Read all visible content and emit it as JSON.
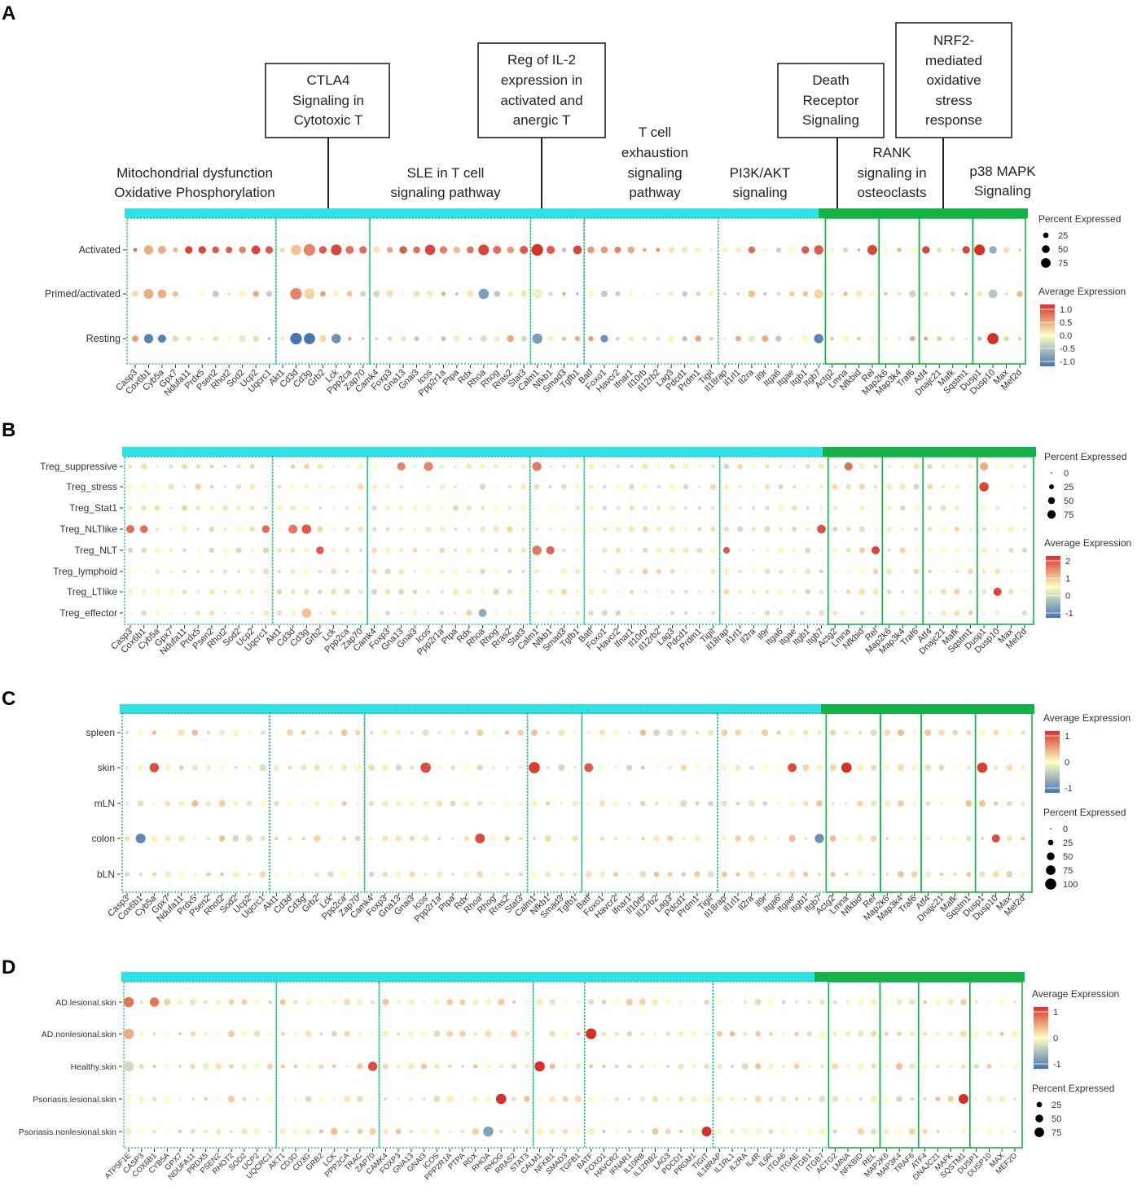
{
  "panel_labels": [
    "A",
    "B",
    "C",
    "D"
  ],
  "pathways_top": [
    {
      "key": "mito",
      "lines": [
        "Mitochondrial dysfunction",
        "Oxidative Phosphorylation"
      ]
    },
    {
      "key": "sle",
      "lines": [
        "SLE in T cell",
        "signaling pathway"
      ]
    },
    {
      "key": "exh",
      "lines": [
        "T cell",
        "exhaustion",
        "signaling",
        "pathway"
      ]
    },
    {
      "key": "pi3k",
      "lines": [
        "PI3K/AKT",
        "signaling"
      ]
    },
    {
      "key": "rank",
      "lines": [
        "RANK",
        "signaling in",
        "osteoclasts"
      ]
    },
    {
      "key": "p38",
      "lines": [
        "p38 MAPK",
        "Signaling"
      ]
    }
  ],
  "pathways_boxed": [
    {
      "key": "ctla4",
      "lines": [
        "CTLA4",
        "Signaling in",
        "Cytotoxic T"
      ]
    },
    {
      "key": "il2",
      "lines": [
        "Reg of IL-2",
        "expression in",
        "activated and",
        "anergic T"
      ]
    },
    {
      "key": "death",
      "lines": [
        "Death",
        "Receptor",
        "Signaling"
      ]
    },
    {
      "key": "nrf2",
      "lines": [
        "NRF2-",
        "mediated",
        "oxidative",
        "stress",
        "response"
      ]
    }
  ],
  "genes_mouse": [
    "Casp3",
    "Cox6b1",
    "Cyb5a",
    "Gpx7",
    "Ndufa11",
    "Prdx5",
    "Psen2",
    "Rhot2",
    "Sod2",
    "Ucp2",
    "Uqcrc1",
    "Akt1",
    "Cd3d",
    "Cd3g",
    "Grb2",
    "Lck",
    "Ppp2ca",
    "Zap70",
    "Camk4",
    "Foxp3",
    "Gna13",
    "Gnai3",
    "Icos",
    "Ppp2r1a",
    "Ptpa",
    "Rdx",
    "Rhoa",
    "Rhog",
    "Rras2",
    "Stat3",
    "Calm1",
    "Nfkb1",
    "Smad3",
    "Tgfb1",
    "Batf",
    "Foxo1",
    "Havcr2",
    "Ifnar1",
    "Il10rb",
    "Il12rb2",
    "Lag3",
    "Pdcd1",
    "Prdm1",
    "Tigit",
    "Il18rap",
    "Il1rl1",
    "Il2ra",
    "Il9r",
    "Itga6",
    "Itgae",
    "Itgb1",
    "Itgb7",
    "Actg2",
    "Lmna",
    "Nfkbid",
    "Rel",
    "Map2k6",
    "Map3k4",
    "Traf6",
    "Atf4",
    "Dnajc21",
    "Mafk",
    "Sqstm1",
    "Dusp1",
    "Dusp10",
    "Max",
    "Mef2d"
  ],
  "genes_human": [
    "ATP5F1E",
    "CASP3",
    "COX6B1",
    "CYB5A",
    "GPX7",
    "NDUFA11",
    "PRDX5",
    "PSEN2",
    "RHOT2",
    "SOD2",
    "UCP2",
    "UQCRC1",
    "AKT1",
    "CD3D",
    "CD3G",
    "GRB2",
    "LCK",
    "PPP2CA",
    "TRAC",
    "ZAP70",
    "CAMK4",
    "FOXP3",
    "GNA13",
    "GNAI3",
    "ICOS",
    "PPP2R1A",
    "PTPA",
    "RDX",
    "RHOA",
    "RHOG",
    "RRAS2",
    "STAT3",
    "CALM1",
    "NFKB1",
    "SMAD3",
    "TGFB1",
    "BATF",
    "FOXO1",
    "HAVCR2",
    "IFNAR1",
    "IL10RB",
    "IL12RB2",
    "LAG3",
    "PDCD1",
    "PRDM1",
    "TIGIT",
    "IL18RAP",
    "IL1RL1",
    "IL2RA",
    "IL4R",
    "IL9R",
    "ITGA6",
    "ITGAE",
    "ITGB1",
    "ITGB7",
    "ACTG2",
    "LMNA",
    "NFKBID",
    "REL",
    "MAP2K6",
    "MAP3K4",
    "TRAF6",
    "ATF4",
    "DNAJC21",
    "MAFK",
    "SQSTM1",
    "DUSP1",
    "DUSP10",
    "MAX",
    "MEF2D"
  ],
  "legend_text": {
    "percent_expressed": "Percent Expressed",
    "average_expression": "Average Expression"
  },
  "colors": {
    "teal_bar": "#2ee3e6",
    "green_bar": "#14b347",
    "dotted_line": "#1fbf8c",
    "scale_high": "#d73027",
    "scale_mid": "#ffffbf",
    "scale_low": "#4575b4"
  },
  "chart_data": [
    {
      "panel": "A",
      "type": "dotplot",
      "genes": "genes_mouse",
      "rows": [
        "Activated",
        "Primed/activated",
        "Resting"
      ],
      "section_breaks_after": [
        "Uqcrc1",
        "Zap70",
        "Stat3",
        "Tgfb1",
        "Tigit",
        "Itgb7",
        "Rel",
        "Traf6",
        "Sqstm1"
      ],
      "color_scale": {
        "min": -1.0,
        "max": 1.0,
        "ticks": [
          "1.0",
          "0.5",
          "0.0",
          "-0.5",
          "-1.0"
        ]
      },
      "size_scale": {
        "ticks": [
          "25",
          "50",
          "75"
        ]
      },
      "highlights": [
        {
          "row": 0,
          "gene": "Casp3",
          "expr": 0.7,
          "pct": 8
        },
        {
          "row": 0,
          "gene": "Cox6b1",
          "expr": 0.4,
          "pct": 45
        },
        {
          "row": 0,
          "gene": "Cyb5a",
          "expr": 0.4,
          "pct": 35
        },
        {
          "row": 0,
          "gene": "Ndufa11",
          "expr": 0.9,
          "pct": 30
        },
        {
          "row": 0,
          "gene": "Prdx5",
          "expr": 0.9,
          "pct": 30
        },
        {
          "row": 0,
          "gene": "Psen2",
          "expr": 0.8,
          "pct": 25
        },
        {
          "row": 0,
          "gene": "Rhot2",
          "expr": 0.8,
          "pct": 22
        },
        {
          "row": 0,
          "gene": "Sod2",
          "expr": 0.6,
          "pct": 25
        },
        {
          "row": 0,
          "gene": "Ucp2",
          "expr": 0.9,
          "pct": 40
        },
        {
          "row": 0,
          "gene": "Uqcrc1",
          "expr": 0.8,
          "pct": 30
        },
        {
          "row": 0,
          "gene": "Cd3d",
          "expr": 0.3,
          "pct": 55
        },
        {
          "row": 0,
          "gene": "Cd3g",
          "expr": 0.6,
          "pct": 70
        },
        {
          "row": 0,
          "gene": "Grb2",
          "expr": 0.8,
          "pct": 30
        },
        {
          "row": 0,
          "gene": "Lck",
          "expr": 0.9,
          "pct": 60
        },
        {
          "row": 0,
          "gene": "Ppp2ca",
          "expr": 0.7,
          "pct": 35
        },
        {
          "row": 0,
          "gene": "Zap70",
          "expr": 0.7,
          "pct": 30
        },
        {
          "row": 0,
          "gene": "Gna13",
          "expr": 0.8,
          "pct": 30
        },
        {
          "row": 0,
          "gene": "Gnai3",
          "expr": 0.7,
          "pct": 25
        },
        {
          "row": 0,
          "gene": "Icos",
          "expr": 0.9,
          "pct": 55
        },
        {
          "row": 0,
          "gene": "Ppp2r1a",
          "expr": 0.6,
          "pct": 30
        },
        {
          "row": 0,
          "gene": "Rdx",
          "expr": 0.7,
          "pct": 25
        },
        {
          "row": 0,
          "gene": "Rhoa",
          "expr": 0.9,
          "pct": 60
        },
        {
          "row": 0,
          "gene": "Rhog",
          "expr": 0.7,
          "pct": 35
        },
        {
          "row": 0,
          "gene": "Rras2",
          "expr": 0.5,
          "pct": 25
        },
        {
          "row": 0,
          "gene": "Stat3",
          "expr": 0.8,
          "pct": 35
        },
        {
          "row": 0,
          "gene": "Calm1",
          "expr": 1.0,
          "pct": 70
        },
        {
          "row": 0,
          "gene": "Nfkb1",
          "expr": 0.8,
          "pct": 35
        },
        {
          "row": 0,
          "gene": "Tgfb1",
          "expr": 0.9,
          "pct": 40
        },
        {
          "row": 0,
          "gene": "Batf",
          "expr": 0.5,
          "pct": 25
        },
        {
          "row": 0,
          "gene": "Foxo1",
          "expr": 0.5,
          "pct": 25
        },
        {
          "row": 0,
          "gene": "Havcr2",
          "expr": 0.6,
          "pct": 22
        },
        {
          "row": 0,
          "gene": "Il2ra",
          "expr": 0.7,
          "pct": 25
        },
        {
          "row": 0,
          "gene": "Itgb1",
          "expr": 0.8,
          "pct": 30
        },
        {
          "row": 0,
          "gene": "Itgb7",
          "expr": 0.8,
          "pct": 45
        },
        {
          "row": 0,
          "gene": "Rel",
          "expr": 0.9,
          "pct": 50
        },
        {
          "row": 0,
          "gene": "Atf4",
          "expr": 0.9,
          "pct": 30
        },
        {
          "row": 0,
          "gene": "Sqstm1",
          "expr": 0.9,
          "pct": 30
        },
        {
          "row": 0,
          "gene": "Dusp1",
          "expr": 1.0,
          "pct": 60
        },
        {
          "row": 0,
          "gene": "Dusp10",
          "expr": -0.6,
          "pct": 30
        },
        {
          "row": 1,
          "gene": "Cox6b1",
          "expr": 0.4,
          "pct": 50
        },
        {
          "row": 1,
          "gene": "Cyb5a",
          "expr": 0.4,
          "pct": 40
        },
        {
          "row": 1,
          "gene": "Cd3d",
          "expr": 0.6,
          "pct": 70
        },
        {
          "row": 1,
          "gene": "Cd3g",
          "expr": 0.2,
          "pct": 60
        },
        {
          "row": 1,
          "gene": "Rhoa",
          "expr": -0.7,
          "pct": 55
        },
        {
          "row": 1,
          "gene": "Calm1",
          "expr": -0.1,
          "pct": 50
        },
        {
          "row": 1,
          "gene": "Itgb7",
          "expr": 0.2,
          "pct": 45
        },
        {
          "row": 1,
          "gene": "Dusp10",
          "expr": -0.4,
          "pct": 40
        },
        {
          "row": 2,
          "gene": "Cox6b1",
          "expr": -0.9,
          "pct": 45
        },
        {
          "row": 2,
          "gene": "Cyb5a",
          "expr": -0.9,
          "pct": 35
        },
        {
          "row": 2,
          "gene": "Cd3d",
          "expr": -1.0,
          "pct": 70
        },
        {
          "row": 2,
          "gene": "Cd3g",
          "expr": -1.0,
          "pct": 65
        },
        {
          "row": 2,
          "gene": "Lck",
          "expr": -0.8,
          "pct": 45
        },
        {
          "row": 2,
          "gene": "Calm1",
          "expr": -0.7,
          "pct": 55
        },
        {
          "row": 2,
          "gene": "Foxo1",
          "expr": -0.8,
          "pct": 30
        },
        {
          "row": 2,
          "gene": "Itgb7",
          "expr": -0.9,
          "pct": 45
        },
        {
          "row": 2,
          "gene": "Dusp10",
          "expr": 1.0,
          "pct": 65
        }
      ]
    },
    {
      "panel": "B",
      "type": "dotplot",
      "genes": "genes_mouse",
      "rows": [
        "Treg_suppressive",
        "Treg_stress",
        "Treg_Stat1",
        "Treg_NLTlike",
        "Treg_NLT",
        "Treg_lymphoid",
        "Treg_LTlike",
        "Treg_effector"
      ],
      "section_breaks_after": [
        "Uqcrc1",
        "Zap70",
        "Stat3",
        "Tgfb1",
        "Tigit",
        "Itgb7",
        "Rel",
        "Traf6",
        "Sqstm1"
      ],
      "color_scale": {
        "min": -1.5,
        "max": 2,
        "ticks": [
          "2",
          "1",
          "0",
          "-1"
        ]
      },
      "size_scale": {
        "ticks": [
          "0",
          "25",
          "50",
          "75"
        ]
      },
      "highlights": [
        {
          "row": 0,
          "gene": "Gna13",
          "expr": 1.2,
          "pct": 45
        },
        {
          "row": 0,
          "gene": "Icos",
          "expr": 1.2,
          "pct": 55
        },
        {
          "row": 0,
          "gene": "Calm1",
          "expr": 1.3,
          "pct": 55
        },
        {
          "row": 0,
          "gene": "Lmna",
          "expr": 1.4,
          "pct": 45
        },
        {
          "row": 0,
          "gene": "Dusp1",
          "expr": 0.8,
          "pct": 45
        },
        {
          "row": 1,
          "gene": "Dusp1",
          "expr": 1.8,
          "pct": 60
        },
        {
          "row": 3,
          "gene": "Casp3",
          "expr": 1.4,
          "pct": 45
        },
        {
          "row": 3,
          "gene": "Cox6b1",
          "expr": 1.4,
          "pct": 40
        },
        {
          "row": 3,
          "gene": "Uqcrc1",
          "expr": 1.4,
          "pct": 40
        },
        {
          "row": 3,
          "gene": "Cd3d",
          "expr": 1.3,
          "pct": 55
        },
        {
          "row": 3,
          "gene": "Cd3g",
          "expr": 1.6,
          "pct": 60
        },
        {
          "row": 3,
          "gene": "Itgb7",
          "expr": 1.7,
          "pct": 50
        },
        {
          "row": 4,
          "gene": "Grb2",
          "expr": 1.6,
          "pct": 40
        },
        {
          "row": 4,
          "gene": "Calm1",
          "expr": 1.3,
          "pct": 60
        },
        {
          "row": 4,
          "gene": "Nfkb1",
          "expr": 1.5,
          "pct": 45
        },
        {
          "row": 4,
          "gene": "Rel",
          "expr": 1.8,
          "pct": 45
        },
        {
          "row": 4,
          "gene": "Il18rap",
          "expr": 1.6,
          "pct": 30
        },
        {
          "row": 6,
          "gene": "Dusp10",
          "expr": 1.8,
          "pct": 45
        },
        {
          "row": 7,
          "gene": "Cd3g",
          "expr": 0.6,
          "pct": 60
        },
        {
          "row": 7,
          "gene": "Rhoa",
          "expr": -0.9,
          "pct": 45
        }
      ]
    },
    {
      "panel": "C",
      "type": "dotplot",
      "genes": "genes_mouse",
      "rows": [
        "spleen",
        "skin",
        "mLN",
        "colon",
        "bLN"
      ],
      "section_breaks_after": [
        "Uqcrc1",
        "Zap70",
        "Stat3",
        "Tgfb1",
        "Tigit",
        "Itgb7",
        "Rel",
        "Traf6",
        "Sqstm1"
      ],
      "color_scale": {
        "min": -1.5,
        "max": 1.5,
        "ticks": [
          "1",
          "0",
          "-1"
        ]
      },
      "size_scale": {
        "ticks": [
          "0",
          "25",
          "50",
          "75",
          "100"
        ]
      },
      "highlights": [
        {
          "row": 1,
          "gene": "Cyb5a",
          "expr": 1.3,
          "pct": 45
        },
        {
          "row": 1,
          "gene": "Icos",
          "expr": 1.3,
          "pct": 55
        },
        {
          "row": 1,
          "gene": "Calm1",
          "expr": 1.4,
          "pct": 65
        },
        {
          "row": 1,
          "gene": "Batf",
          "expr": 1.2,
          "pct": 40
        },
        {
          "row": 1,
          "gene": "Lmna",
          "expr": 1.5,
          "pct": 55
        },
        {
          "row": 1,
          "gene": "Dusp1",
          "expr": 1.4,
          "pct": 55
        },
        {
          "row": 1,
          "gene": "Itgae",
          "expr": 1.3,
          "pct": 40
        },
        {
          "row": 3,
          "gene": "Cox6b1",
          "expr": -1.3,
          "pct": 50
        },
        {
          "row": 3,
          "gene": "Rhoa",
          "expr": 1.3,
          "pct": 50
        },
        {
          "row": 3,
          "gene": "Itgb7",
          "expr": -1.2,
          "pct": 45
        },
        {
          "row": 3,
          "gene": "Dusp10",
          "expr": 1.3,
          "pct": 35
        }
      ]
    },
    {
      "panel": "D",
      "type": "dotplot",
      "genes": "genes_human",
      "rows": [
        "AD.lesional.skin",
        "AD.nonlesional.skin",
        "Healthy.skin",
        "Psoriasis.lesional.skin",
        "Psoriasis.nonlesional.skin"
      ],
      "section_breaks_after": [
        "UQCRC1",
        "ZAP70",
        "STAT3",
        "TGFB1",
        "TIGIT",
        "ITGB7",
        "REL",
        "TRAF6",
        "SQSTM1"
      ],
      "color_scale": {
        "min": -1.5,
        "max": 1.5,
        "ticks": [
          "1",
          "0",
          "-1"
        ]
      },
      "size_scale": {
        "ticks": [
          "25",
          "50",
          "75"
        ]
      },
      "highlights": [
        {
          "row": 0,
          "gene": "ATP5F1E",
          "expr": 1.0,
          "pct": 55
        },
        {
          "row": 0,
          "gene": "COX6B1",
          "expr": 1.0,
          "pct": 45
        },
        {
          "row": 1,
          "gene": "BATF",
          "expr": 1.6,
          "pct": 60
        },
        {
          "row": 1,
          "gene": "ATP5F1E",
          "expr": 0.6,
          "pct": 55
        },
        {
          "row": 2,
          "gene": "ATP5F1E",
          "expr": -0.4,
          "pct": 55
        },
        {
          "row": 2,
          "gene": "CALM1",
          "expr": 1.5,
          "pct": 55
        },
        {
          "row": 2,
          "gene": "ZAP70",
          "expr": 1.3,
          "pct": 45
        },
        {
          "row": 3,
          "gene": "RHOG",
          "expr": 1.5,
          "pct": 55
        },
        {
          "row": 3,
          "gene": "SQSTM1",
          "expr": 1.5,
          "pct": 50
        },
        {
          "row": 4,
          "gene": "TIGIT",
          "expr": 1.5,
          "pct": 50
        },
        {
          "row": 4,
          "gene": "RHOA",
          "expr": -1.0,
          "pct": 55
        }
      ]
    }
  ]
}
